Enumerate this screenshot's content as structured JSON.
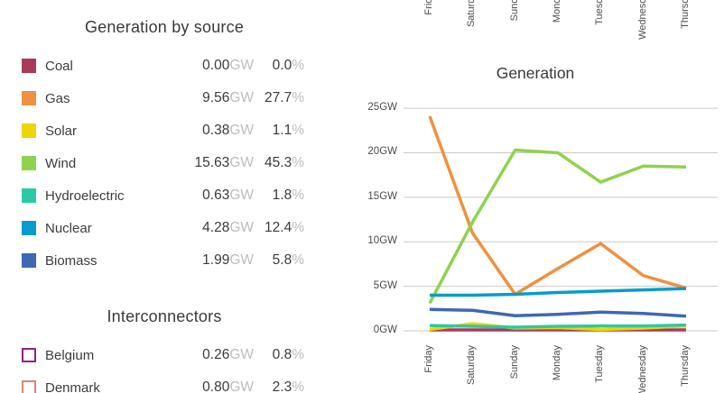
{
  "source_panel": {
    "title": "Generation by source",
    "rows": [
      {
        "label": "Coal",
        "value": "0.00",
        "unit": "GW",
        "pct": "0.0",
        "pct_unit": "%",
        "color": "#a83a5a",
        "swatch": "filled"
      },
      {
        "label": "Gas",
        "value": "9.56",
        "unit": "GW",
        "pct": "27.7",
        "pct_unit": "%",
        "color": "#ef913e",
        "swatch": "filled"
      },
      {
        "label": "Solar",
        "value": "0.38",
        "unit": "GW",
        "pct": "1.1",
        "pct_unit": "%",
        "color": "#f0d500",
        "swatch": "filled"
      },
      {
        "label": "Wind",
        "value": "15.63",
        "unit": "GW",
        "pct": "45.3",
        "pct_unit": "%",
        "color": "#8fd24e",
        "swatch": "filled"
      },
      {
        "label": "Hydroelectric",
        "value": "0.63",
        "unit": "GW",
        "pct": "1.8",
        "pct_unit": "%",
        "color": "#2bcaa2",
        "swatch": "filled"
      },
      {
        "label": "Nuclear",
        "value": "4.28",
        "unit": "GW",
        "pct": "12.4",
        "pct_unit": "%",
        "color": "#089ccc",
        "swatch": "filled"
      },
      {
        "label": "Biomass",
        "value": "1.99",
        "unit": "GW",
        "pct": "5.8",
        "pct_unit": "%",
        "color": "#3c69b4",
        "swatch": "filled"
      }
    ]
  },
  "interconnectors_panel": {
    "title": "Interconnectors",
    "rows": [
      {
        "label": "Belgium",
        "value": "0.26",
        "unit": "GW",
        "pct": "0.8",
        "pct_unit": "%",
        "color": "#8f2185",
        "swatch": "outline"
      },
      {
        "label": "Denmark",
        "value": "0.80",
        "unit": "GW",
        "pct": "2.3",
        "pct_unit": "%",
        "color": "#e08377",
        "swatch": "outline"
      }
    ]
  },
  "top_axis": {
    "labels": [
      "Friday",
      "Saturday",
      "Sunday",
      "Monday",
      "Tuesday",
      "Wednesday",
      "Thursday"
    ]
  },
  "chart_data": {
    "type": "line",
    "title": "Generation",
    "categories": [
      "Friday",
      "Saturday",
      "Sunday",
      "Monday",
      "Tuesday",
      "Wednesday",
      "Thursday"
    ],
    "ylabel_unit": "GW",
    "ylim": [
      0,
      25
    ],
    "grid": true,
    "legend_position": "none",
    "yticks": [
      {
        "value": 0,
        "label": "0GW"
      },
      {
        "value": 5,
        "label": "5GW"
      },
      {
        "value": 10,
        "label": "10GW"
      },
      {
        "value": 15,
        "label": "15GW"
      },
      {
        "value": 20,
        "label": "20GW"
      },
      {
        "value": 25,
        "label": "25GW"
      }
    ],
    "series": [
      {
        "name": "Coal",
        "color": "#a83a5a",
        "values": [
          0.1,
          0.1,
          0.1,
          0.1,
          0.1,
          0.1,
          0.1
        ]
      },
      {
        "name": "Gas",
        "color": "#ef913e",
        "values": [
          24.1,
          11.0,
          4.1,
          7.0,
          9.8,
          6.2,
          4.8
        ]
      },
      {
        "name": "Solar",
        "color": "#f0d500",
        "values": [
          0.15,
          0.8,
          0.3,
          0.35,
          0.15,
          0.3,
          0.55
        ]
      },
      {
        "name": "Wind",
        "color": "#8fd24e",
        "values": [
          3.1,
          12.2,
          20.3,
          20.0,
          16.7,
          18.5,
          18.4
        ]
      },
      {
        "name": "Hydroelectric",
        "color": "#2bcaa2",
        "values": [
          0.6,
          0.5,
          0.4,
          0.5,
          0.55,
          0.55,
          0.65
        ]
      },
      {
        "name": "Nuclear",
        "color": "#089ccc",
        "values": [
          4.0,
          4.0,
          4.1,
          4.3,
          4.45,
          4.6,
          4.75
        ]
      },
      {
        "name": "Biomass",
        "color": "#3c69b4",
        "values": [
          2.4,
          2.3,
          1.7,
          1.85,
          2.1,
          1.95,
          1.65
        ]
      }
    ]
  }
}
